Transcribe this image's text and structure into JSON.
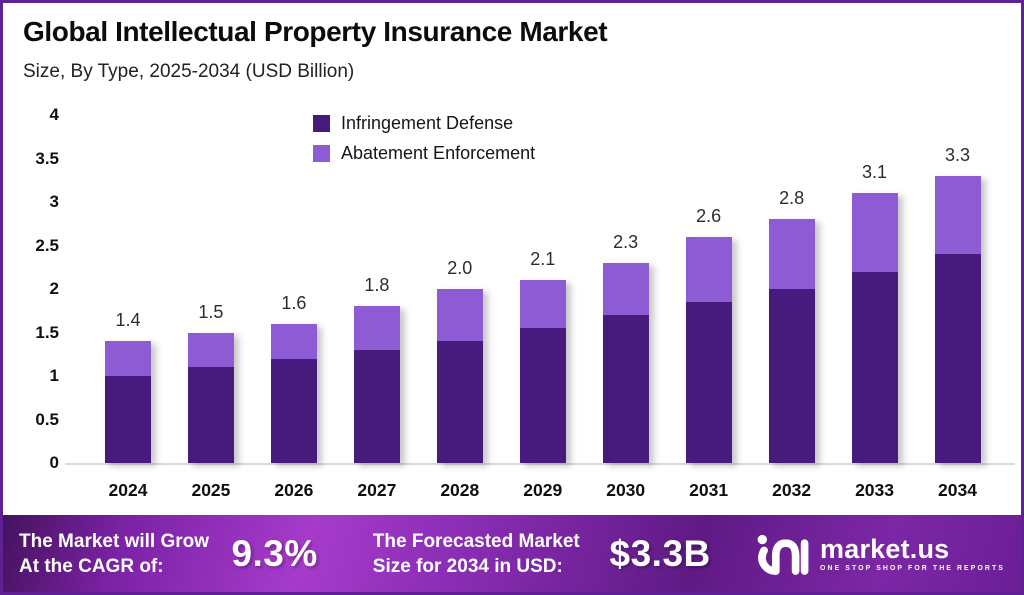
{
  "header": {
    "title": "Global Intellectual Property Insurance Market",
    "subtitle": "Size, By Type, 2025-2034 (USD Billion)"
  },
  "chart_data": {
    "type": "bar",
    "stacked": true,
    "title": "Global Intellectual Property Insurance Market",
    "subtitle": "Size, By Type, 2025-2034 (USD Billion)",
    "value_unit": "USD Billion",
    "categories": [
      "2024",
      "2025",
      "2026",
      "2027",
      "2028",
      "2029",
      "2030",
      "2031",
      "2032",
      "2033",
      "2034"
    ],
    "series": [
      {
        "name": "Infringement Defense",
        "color": "#471a7d",
        "values": [
          1.0,
          1.1,
          1.2,
          1.3,
          1.4,
          1.55,
          1.7,
          1.85,
          2.0,
          2.2,
          2.4
        ]
      },
      {
        "name": "Abatement Enforcement",
        "color": "#8d5bd4",
        "values": [
          0.4,
          0.4,
          0.4,
          0.5,
          0.6,
          0.55,
          0.6,
          0.75,
          0.8,
          0.9,
          0.9
        ]
      }
    ],
    "totals": [
      1.4,
      1.5,
      1.6,
      1.8,
      2.0,
      2.1,
      2.3,
      2.6,
      2.8,
      3.1,
      3.3
    ],
    "total_labels": [
      "1.4",
      "1.5",
      "1.6",
      "1.8",
      "2.0",
      "2.1",
      "2.3",
      "2.6",
      "2.8",
      "3.1",
      "3.3"
    ],
    "ylim": [
      0,
      4
    ],
    "yticks": [
      0,
      0.5,
      1,
      1.5,
      2,
      2.5,
      3,
      3.5,
      4
    ],
    "ytick_labels": [
      "0",
      "0.5",
      "1",
      "1.5",
      "2",
      "2.5",
      "3",
      "3.5",
      "4"
    ],
    "grid": false,
    "legend_position": "top-center"
  },
  "footer": {
    "cagr_label_line1": "The Market will Grow",
    "cagr_label_line2": "At the CAGR of:",
    "cagr_value": "9.3%",
    "forecast_label_line1": "The Forecasted Market",
    "forecast_label_line2": "Size for 2034 in USD:",
    "forecast_value": "$3.3B",
    "brand_name": "market.us",
    "brand_tagline": "ONE STOP SHOP FOR THE REPORTS"
  },
  "colors": {
    "defense_bar": "#471a7d",
    "abatement_bar": "#8d5bd4",
    "frame_border": "#5e2193",
    "axis_line": "#d9d9d9",
    "banner_purple_dark": "#5f1a85",
    "banner_purple_bright": "#a63bcb",
    "text_dark": "#0c0c0c",
    "text_white": "#ffffff"
  }
}
